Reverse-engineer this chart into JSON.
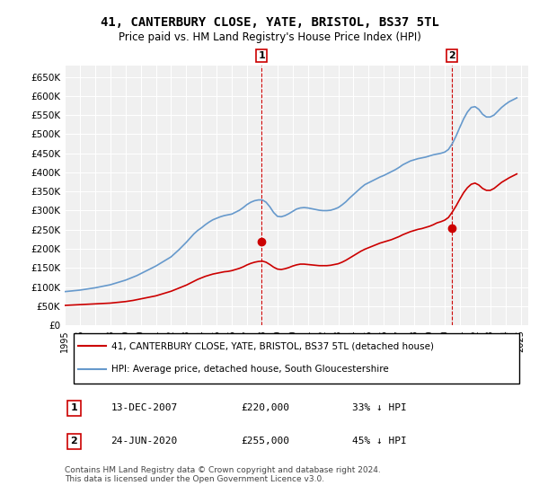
{
  "title": "41, CANTERBURY CLOSE, YATE, BRISTOL, BS37 5TL",
  "subtitle": "Price paid vs. HM Land Registry's House Price Index (HPI)",
  "ylabel": "",
  "xlabel": "",
  "background_color": "#ffffff",
  "plot_bg_color": "#f0f0f0",
  "grid_color": "#ffffff",
  "hpi_color": "#6699cc",
  "price_color": "#cc0000",
  "ylim": [
    0,
    680000
  ],
  "yticks": [
    0,
    50000,
    100000,
    150000,
    200000,
    250000,
    300000,
    350000,
    400000,
    450000,
    500000,
    550000,
    600000,
    650000
  ],
  "ytick_labels": [
    "£0",
    "£50K",
    "£100K",
    "£150K",
    "£200K",
    "£250K",
    "£300K",
    "£350K",
    "£400K",
    "£450K",
    "£500K",
    "£550K",
    "£600K",
    "£650K"
  ],
  "xlim_start": 1995.0,
  "xlim_end": 2025.5,
  "xticks": [
    1995,
    1996,
    1997,
    1998,
    1999,
    2000,
    2001,
    2002,
    2003,
    2004,
    2005,
    2006,
    2007,
    2008,
    2009,
    2010,
    2011,
    2012,
    2013,
    2014,
    2015,
    2016,
    2017,
    2018,
    2019,
    2020,
    2021,
    2022,
    2023,
    2024,
    2025
  ],
  "sale1_x": 2007.95,
  "sale1_y": 220000,
  "sale1_label": "1",
  "sale2_x": 2020.48,
  "sale2_y": 255000,
  "sale2_label": "2",
  "vline1_x": 2007.95,
  "vline2_x": 2020.48,
  "legend_line1": "41, CANTERBURY CLOSE, YATE, BRISTOL, BS37 5TL (detached house)",
  "legend_line2": "HPI: Average price, detached house, South Gloucestershire",
  "table_data": [
    [
      "1",
      "13-DEC-2007",
      "£220,000",
      "33% ↓ HPI"
    ],
    [
      "2",
      "24-JUN-2020",
      "£255,000",
      "45% ↓ HPI"
    ]
  ],
  "footnote": "Contains HM Land Registry data © Crown copyright and database right 2024.\nThis data is licensed under the Open Government Licence v3.0.",
  "hpi_years": [
    1995,
    1995.25,
    1995.5,
    1995.75,
    1996,
    1996.25,
    1996.5,
    1996.75,
    1997,
    1997.25,
    1997.5,
    1997.75,
    1998,
    1998.25,
    1998.5,
    1998.75,
    1999,
    1999.25,
    1999.5,
    1999.75,
    2000,
    2000.25,
    2000.5,
    2000.75,
    2001,
    2001.25,
    2001.5,
    2001.75,
    2002,
    2002.25,
    2002.5,
    2002.75,
    2003,
    2003.25,
    2003.5,
    2003.75,
    2004,
    2004.25,
    2004.5,
    2004.75,
    2005,
    2005.25,
    2005.5,
    2005.75,
    2006,
    2006.25,
    2006.5,
    2006.75,
    2007,
    2007.25,
    2007.5,
    2007.75,
    2008,
    2008.25,
    2008.5,
    2008.75,
    2009,
    2009.25,
    2009.5,
    2009.75,
    2010,
    2010.25,
    2010.5,
    2010.75,
    2011,
    2011.25,
    2011.5,
    2011.75,
    2012,
    2012.25,
    2012.5,
    2012.75,
    2013,
    2013.25,
    2013.5,
    2013.75,
    2014,
    2014.25,
    2014.5,
    2014.75,
    2015,
    2015.25,
    2015.5,
    2015.75,
    2016,
    2016.25,
    2016.5,
    2016.75,
    2017,
    2017.25,
    2017.5,
    2017.75,
    2018,
    2018.25,
    2018.5,
    2018.75,
    2019,
    2019.25,
    2019.5,
    2019.75,
    2020,
    2020.25,
    2020.5,
    2020.75,
    2021,
    2021.25,
    2021.5,
    2021.75,
    2022,
    2022.25,
    2022.5,
    2022.75,
    2023,
    2023.25,
    2023.5,
    2023.75,
    2024,
    2024.25,
    2024.5,
    2024.75
  ],
  "hpi_values": [
    88000,
    89000,
    90000,
    91000,
    92000,
    93500,
    95000,
    96500,
    98000,
    100000,
    102000,
    104000,
    106000,
    109000,
    112000,
    115000,
    118000,
    122000,
    126000,
    130000,
    135000,
    140000,
    145000,
    150000,
    155000,
    161000,
    167000,
    173000,
    179000,
    188000,
    197000,
    207000,
    217000,
    228000,
    239000,
    248000,
    255000,
    263000,
    270000,
    276000,
    280000,
    284000,
    287000,
    289000,
    291000,
    296000,
    301000,
    308000,
    316000,
    322000,
    326000,
    328000,
    328000,
    322000,
    310000,
    295000,
    285000,
    284000,
    287000,
    292000,
    298000,
    304000,
    307000,
    308000,
    307000,
    305000,
    303000,
    301000,
    300000,
    300000,
    301000,
    304000,
    308000,
    315000,
    323000,
    333000,
    342000,
    351000,
    360000,
    368000,
    373000,
    378000,
    383000,
    388000,
    392000,
    397000,
    402000,
    407000,
    413000,
    420000,
    425000,
    430000,
    433000,
    436000,
    438000,
    440000,
    443000,
    446000,
    448000,
    450000,
    453000,
    460000,
    475000,
    495000,
    518000,
    540000,
    558000,
    570000,
    572000,
    565000,
    552000,
    545000,
    545000,
    550000,
    560000,
    570000,
    578000,
    585000,
    590000,
    595000
  ],
  "price_years": [
    1995,
    1995.25,
    1995.5,
    1995.75,
    1996,
    1996.25,
    1996.5,
    1996.75,
    1997,
    1997.25,
    1997.5,
    1997.75,
    1998,
    1998.25,
    1998.5,
    1998.75,
    1999,
    1999.25,
    1999.5,
    1999.75,
    2000,
    2000.25,
    2000.5,
    2000.75,
    2001,
    2001.25,
    2001.5,
    2001.75,
    2002,
    2002.25,
    2002.5,
    2002.75,
    2003,
    2003.25,
    2003.5,
    2003.75,
    2004,
    2004.25,
    2004.5,
    2004.75,
    2005,
    2005.25,
    2005.5,
    2005.75,
    2006,
    2006.25,
    2006.5,
    2006.75,
    2007,
    2007.25,
    2007.5,
    2007.75,
    2008,
    2008.25,
    2008.5,
    2008.75,
    2009,
    2009.25,
    2009.5,
    2009.75,
    2010,
    2010.25,
    2010.5,
    2010.75,
    2011,
    2011.25,
    2011.5,
    2011.75,
    2012,
    2012.25,
    2012.5,
    2012.75,
    2013,
    2013.25,
    2013.5,
    2013.75,
    2014,
    2014.25,
    2014.5,
    2014.75,
    2015,
    2015.25,
    2015.5,
    2015.75,
    2016,
    2016.25,
    2016.5,
    2016.75,
    2017,
    2017.25,
    2017.5,
    2017.75,
    2018,
    2018.25,
    2018.5,
    2018.75,
    2019,
    2019.25,
    2019.5,
    2019.75,
    2020,
    2020.25,
    2020.5,
    2020.75,
    2021,
    2021.25,
    2021.5,
    2021.75,
    2022,
    2022.25,
    2022.5,
    2022.75,
    2023,
    2023.25,
    2023.5,
    2023.75,
    2024,
    2024.25,
    2024.5,
    2024.75
  ],
  "price_values": [
    52000,
    52500,
    53000,
    53500,
    54000,
    54500,
    55000,
    55500,
    56000,
    56500,
    57000,
    57500,
    58000,
    59000,
    60000,
    61000,
    62000,
    63500,
    65000,
    67000,
    69000,
    71000,
    73000,
    75000,
    77000,
    80000,
    83000,
    86000,
    89000,
    93000,
    97000,
    101000,
    105000,
    110000,
    115000,
    120000,
    124000,
    128000,
    131000,
    134000,
    136000,
    138000,
    140000,
    141000,
    143000,
    146000,
    149000,
    153000,
    158000,
    162000,
    165000,
    167000,
    168000,
    165000,
    159000,
    152000,
    147000,
    146000,
    148000,
    151000,
    155000,
    158000,
    160000,
    160000,
    159000,
    158000,
    157000,
    156000,
    156000,
    156000,
    157000,
    159000,
    161000,
    165000,
    170000,
    176000,
    182000,
    188000,
    194000,
    199000,
    203000,
    207000,
    211000,
    215000,
    218000,
    221000,
    224000,
    228000,
    232000,
    237000,
    241000,
    245000,
    248000,
    251000,
    253000,
    256000,
    259000,
    263000,
    268000,
    271000,
    275000,
    282000,
    296000,
    312000,
    330000,
    347000,
    360000,
    369000,
    372000,
    367000,
    358000,
    353000,
    353000,
    358000,
    366000,
    374000,
    380000,
    386000,
    391000,
    396000
  ]
}
